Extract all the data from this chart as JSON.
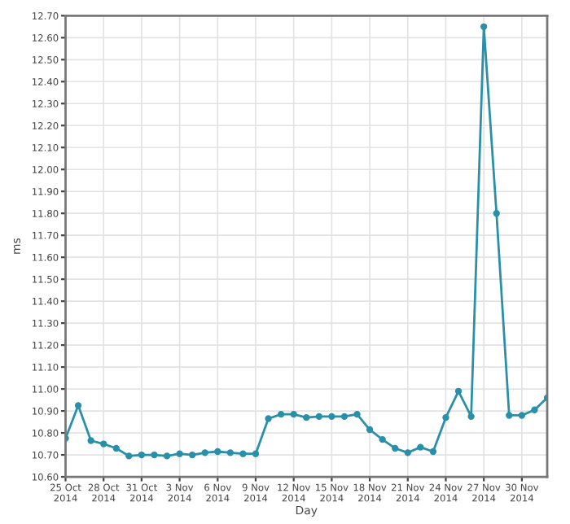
{
  "chart_data": {
    "type": "line",
    "xlabel": "Day",
    "ylabel": "ms",
    "x": [
      "2014-10-25",
      "2014-10-26",
      "2014-10-27",
      "2014-10-28",
      "2014-10-29",
      "2014-10-30",
      "2014-10-31",
      "2014-11-01",
      "2014-11-02",
      "2014-11-03",
      "2014-11-04",
      "2014-11-05",
      "2014-11-06",
      "2014-11-07",
      "2014-11-08",
      "2014-11-09",
      "2014-11-10",
      "2014-11-11",
      "2014-11-12",
      "2014-11-13",
      "2014-11-14",
      "2014-11-15",
      "2014-11-16",
      "2014-11-17",
      "2014-11-18",
      "2014-11-19",
      "2014-11-20",
      "2014-11-21",
      "2014-11-22",
      "2014-11-23",
      "2014-11-24",
      "2014-11-25",
      "2014-11-26",
      "2014-11-27",
      "2014-11-28",
      "2014-11-29",
      "2014-11-30",
      "2014-12-01",
      "2014-12-02"
    ],
    "series": [
      {
        "color": "#2a8fa8",
        "values": [
          10.775,
          10.925,
          10.765,
          10.75,
          10.73,
          10.695,
          10.7,
          10.7,
          10.695,
          10.705,
          10.7,
          10.71,
          10.715,
          10.71,
          10.705,
          10.705,
          10.865,
          10.885,
          10.885,
          10.87,
          10.875,
          10.875,
          10.875,
          10.885,
          10.815,
          10.77,
          10.73,
          10.71,
          10.735,
          10.715,
          10.87,
          10.99,
          10.875,
          12.65,
          11.8,
          10.88,
          10.88,
          10.905,
          10.96
        ]
      }
    ],
    "xlim": [
      "2014-10-25",
      "2014-12-02"
    ],
    "xticks": [
      {
        "value": "2014-10-25",
        "label": "25 Oct\n2014"
      },
      {
        "value": "2014-10-28",
        "label": "28 Oct\n2014"
      },
      {
        "value": "2014-10-31",
        "label": "31 Oct\n2014"
      },
      {
        "value": "2014-11-03",
        "label": "3 Nov\n2014"
      },
      {
        "value": "2014-11-06",
        "label": "6 Nov\n2014"
      },
      {
        "value": "2014-11-09",
        "label": "9 Nov\n2014"
      },
      {
        "value": "2014-11-12",
        "label": "12 Nov\n2014"
      },
      {
        "value": "2014-11-15",
        "label": "15 Nov\n2014"
      },
      {
        "value": "2014-11-18",
        "label": "18 Nov\n2014"
      },
      {
        "value": "2014-11-21",
        "label": "21 Nov\n2014"
      },
      {
        "value": "2014-11-24",
        "label": "24 Nov\n2014"
      },
      {
        "value": "2014-11-27",
        "label": "27 Nov\n2014"
      },
      {
        "value": "2014-11-30",
        "label": "30 Nov\n2014"
      }
    ],
    "ylim": [
      10.6,
      12.7
    ],
    "yticks": [
      {
        "value": 10.6,
        "label": "10.60"
      },
      {
        "value": 10.7,
        "label": "10.70"
      },
      {
        "value": 10.8,
        "label": "10.80"
      },
      {
        "value": 10.9,
        "label": "10.90"
      },
      {
        "value": 11.0,
        "label": "11.00"
      },
      {
        "value": 11.1,
        "label": "11.10"
      },
      {
        "value": 11.2,
        "label": "11.20"
      },
      {
        "value": 11.3,
        "label": "11.30"
      },
      {
        "value": 11.4,
        "label": "11.40"
      },
      {
        "value": 11.5,
        "label": "11.50"
      },
      {
        "value": 11.6,
        "label": "11.60"
      },
      {
        "value": 11.7,
        "label": "11.70"
      },
      {
        "value": 11.8,
        "label": "11.80"
      },
      {
        "value": 11.9,
        "label": "11.90"
      },
      {
        "value": 12.0,
        "label": "12.00"
      },
      {
        "value": 12.1,
        "label": "12.10"
      },
      {
        "value": 12.2,
        "label": "12.20"
      },
      {
        "value": 12.3,
        "label": "12.30"
      },
      {
        "value": 12.4,
        "label": "12.40"
      },
      {
        "value": 12.5,
        "label": "12.50"
      },
      {
        "value": 12.6,
        "label": "12.60"
      },
      {
        "value": 12.7,
        "label": "12.70"
      }
    ],
    "grid": true,
    "marker": "circle",
    "line_style": "solid",
    "legend": false
  }
}
